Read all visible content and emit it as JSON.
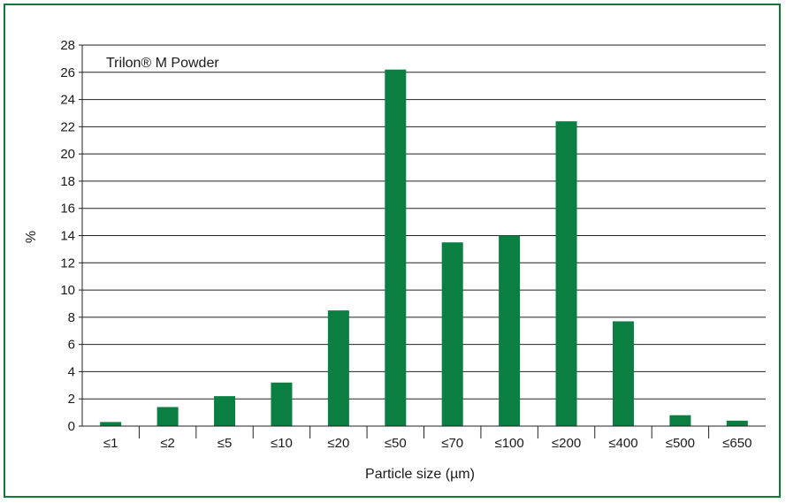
{
  "chart_data": {
    "type": "bar",
    "series_label": "Trilon® M Powder",
    "categories": [
      "≤1",
      "≤2",
      "≤5",
      "≤10",
      "≤20",
      "≤50",
      "≤70",
      "≤100",
      "≤200",
      "≤400",
      "≤500",
      "≤650"
    ],
    "values": [
      0.3,
      1.4,
      2.2,
      3.2,
      8.5,
      26.2,
      13.5,
      14.0,
      22.4,
      7.7,
      0.8,
      0.4
    ],
    "xlabel": "Particle size (µm)",
    "ylabel": "%",
    "ylim": [
      0,
      28
    ],
    "yticks": [
      0,
      2,
      4,
      6,
      8,
      10,
      12,
      14,
      16,
      18,
      20,
      22,
      24,
      26,
      28
    ],
    "grid": "horizontal",
    "bar_color": "#0a7f41",
    "frame_color": "#0f7a3c"
  }
}
